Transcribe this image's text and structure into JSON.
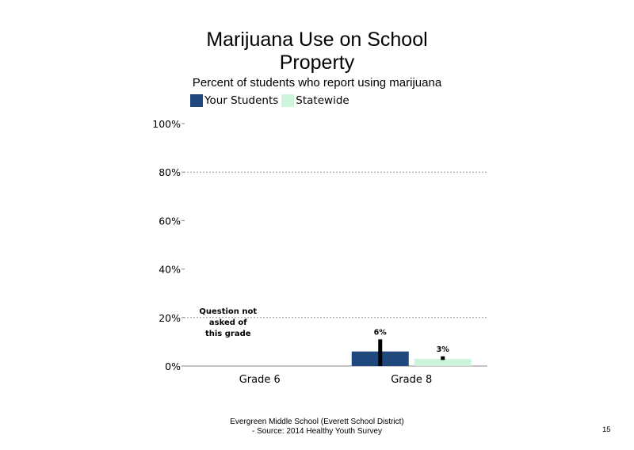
{
  "page": {
    "title_line1": "Marijuana Use on School",
    "title_line2": "Property",
    "subtitle": "Percent of students who report using marijuana",
    "footer_line1": "Evergreen Middle School (Everett School District)",
    "footer_line2": "- Source: 2014 Healthy  Youth Survey",
    "page_number": "15"
  },
  "chart_data": {
    "type": "bar",
    "categories": [
      "Grade 6",
      "Grade 8"
    ],
    "series": [
      {
        "name": "Your Students",
        "color": "#1f497d",
        "values": [
          null,
          6
        ],
        "labels": [
          "",
          "6%"
        ],
        "error_low": [
          null,
          0
        ],
        "error_high": [
          null,
          11
        ]
      },
      {
        "name": "Statewide",
        "color": "#ccf5dc",
        "values": [
          null,
          3
        ],
        "labels": [
          "",
          "3%"
        ],
        "error_low": [
          null,
          2.5
        ],
        "error_high": [
          null,
          4
        ]
      }
    ],
    "ylim": [
      0,
      100
    ],
    "yticks": [
      0,
      20,
      40,
      60,
      80,
      100
    ],
    "ytick_labels": [
      "0%",
      "20%",
      "40%",
      "60%",
      "80%",
      "100%"
    ],
    "gridlines": [
      20,
      80
    ],
    "legend_position": "top-left",
    "annotations": [
      {
        "category": "Grade 6",
        "lines": [
          "Question not",
          "asked of",
          "this grade"
        ]
      }
    ]
  }
}
